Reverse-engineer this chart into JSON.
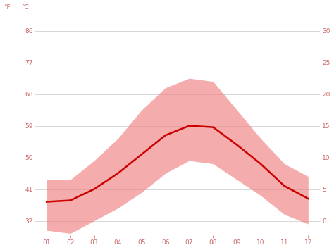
{
  "months": [
    1,
    2,
    3,
    4,
    5,
    6,
    7,
    8,
    9,
    10,
    11,
    12
  ],
  "month_labels": [
    "01",
    "02",
    "03",
    "04",
    "05",
    "06",
    "07",
    "08",
    "09",
    "10",
    "11",
    "12"
  ],
  "avg_temp_f": [
    37.4,
    37.8,
    41.0,
    45.5,
    50.9,
    56.3,
    59.0,
    58.6,
    53.6,
    48.2,
    41.9,
    38.3
  ],
  "max_temp_f": [
    43.7,
    43.7,
    49.1,
    55.4,
    63.5,
    69.8,
    72.5,
    71.6,
    63.5,
    55.4,
    48.2,
    44.6
  ],
  "min_temp_f": [
    29.3,
    28.4,
    32.0,
    35.6,
    40.1,
    45.5,
    49.1,
    48.2,
    43.7,
    39.2,
    33.8,
    31.1
  ],
  "avg_color": "#cc0000",
  "band_color": "#f08080",
  "band_alpha": 0.65,
  "background_color": "#ffffff",
  "grid_color": "#d0d0d0",
  "yticks_f": [
    32,
    41,
    50,
    59,
    68,
    77,
    86
  ],
  "yticks_c": [
    0,
    5,
    10,
    15,
    20,
    25,
    30
  ],
  "ylim_f": [
    28,
    90
  ],
  "tick_label_color": "#cc6666",
  "line_width": 1.8,
  "figsize": [
    4.74,
    3.55
  ],
  "dpi": 100
}
